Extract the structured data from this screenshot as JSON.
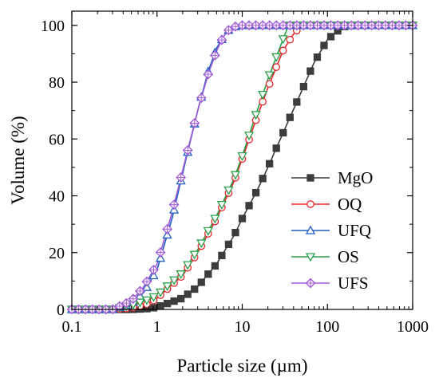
{
  "chart_data": {
    "type": "line",
    "xlabel": "Particle size (µm)",
    "ylabel": "Volume (%)",
    "x_scale": "log",
    "xlim": [
      0.1,
      1000
    ],
    "ylim": [
      0,
      105
    ],
    "x_ticks": [
      0.1,
      1,
      10,
      100,
      1000
    ],
    "x_tick_labels": [
      "0.1",
      "1",
      "10",
      "100",
      "1000"
    ],
    "y_ticks": [
      0,
      20,
      40,
      60,
      80,
      100
    ],
    "y_tick_labels": [
      "0",
      "20",
      "40",
      "60",
      "80",
      "100"
    ],
    "grid": false,
    "legend_position": "lower-right",
    "series": [
      {
        "name": "MgO",
        "color": "#3c3c3c",
        "marker": "square",
        "x": [
          0.1,
          0.3,
          0.5,
          0.8,
          1,
          2,
          3,
          5,
          8,
          10,
          15,
          20,
          30,
          50,
          70,
          100,
          150,
          200,
          1000
        ],
        "y": [
          0,
          0,
          0,
          0.3,
          0.8,
          4,
          8,
          16,
          26,
          32,
          42,
          50,
          62,
          77,
          87,
          95,
          99.5,
          100,
          100
        ]
      },
      {
        "name": "OQ",
        "color": "#e8262b",
        "marker": "circle",
        "x": [
          0.1,
          0.3,
          0.5,
          0.8,
          1,
          2,
          3,
          5,
          8,
          10,
          15,
          20,
          30,
          40,
          50,
          1000
        ],
        "y": [
          0,
          0,
          0.5,
          2,
          4,
          12,
          20,
          32,
          45,
          53,
          68,
          78,
          91,
          97,
          100,
          100
        ]
      },
      {
        "name": "UFQ",
        "color": "#1f5fc4",
        "marker": "triangle-up",
        "x": [
          0.1,
          0.3,
          0.5,
          0.7,
          1,
          1.5,
          2,
          3,
          4,
          5,
          6,
          7,
          8,
          10,
          1000
        ],
        "y": [
          0,
          0,
          2,
          6,
          14,
          32,
          48,
          70,
          84,
          92,
          96,
          98.5,
          99.5,
          100,
          100
        ]
      },
      {
        "name": "OS",
        "color": "#2aa04a",
        "marker": "triangle-down",
        "x": [
          0.1,
          0.3,
          0.5,
          0.8,
          1,
          2,
          3,
          5,
          8,
          10,
          15,
          20,
          30,
          35,
          1000
        ],
        "y": [
          0,
          0,
          1.5,
          3.5,
          5,
          13,
          21,
          33,
          46,
          54,
          70,
          81,
          95,
          100,
          100
        ]
      },
      {
        "name": "UFS",
        "color": "#a05bd6",
        "marker": "diamond",
        "x": [
          0.1,
          0.3,
          0.5,
          0.7,
          1,
          1.5,
          2,
          3,
          4,
          5,
          6,
          7,
          8,
          10,
          1000
        ],
        "y": [
          0,
          0,
          3,
          8,
          16,
          34,
          49,
          70,
          83,
          91,
          96,
          98.5,
          99.5,
          100,
          100
        ]
      }
    ]
  }
}
